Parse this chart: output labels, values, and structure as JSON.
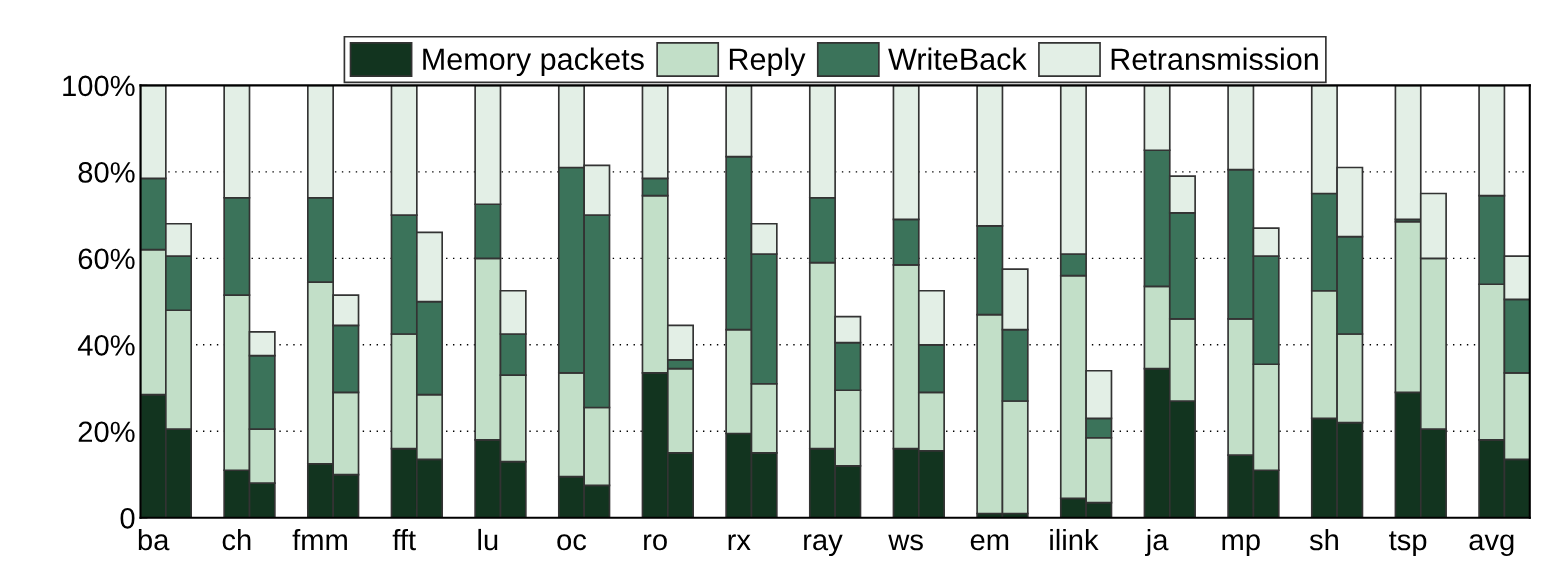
{
  "chart_data": {
    "type": "bar",
    "stacked": true,
    "categories": [
      "ba",
      null,
      "ch",
      null,
      "fmm",
      null,
      "fft",
      null,
      "lu",
      null,
      "oc",
      null,
      "ro",
      null,
      "rx",
      null,
      "ray",
      null,
      "ws",
      null,
      "em",
      null,
      "ilink",
      null,
      "ja",
      null,
      "mp",
      null,
      "sh",
      null,
      "tsp",
      null,
      "avg",
      null
    ],
    "series": [
      {
        "name": "Memory packets",
        "color": "#12341f",
        "values": [
          28.5,
          20.5,
          11,
          8,
          12.5,
          10,
          16,
          13.5,
          18,
          13,
          9.5,
          7.5,
          33.5,
          15,
          19.5,
          15,
          16,
          12,
          16,
          15.5,
          1,
          1,
          4.5,
          3.5,
          34.5,
          27,
          14.5,
          11,
          23,
          22,
          29,
          20.5,
          18,
          13.5
        ]
      },
      {
        "name": "Reply",
        "color": "#c2dfc8",
        "values": [
          33.5,
          27.5,
          40.5,
          12.5,
          42,
          19,
          26.5,
          15,
          42,
          20,
          24,
          18,
          41,
          19.5,
          24,
          16,
          43,
          17.5,
          42.5,
          13.5,
          46,
          26,
          51.5,
          15,
          19,
          19,
          31.5,
          24.5,
          29.5,
          20.5,
          39.5,
          39.5,
          36,
          20
        ]
      },
      {
        "name": "WriteBack",
        "color": "#3b735a",
        "values": [
          16.5,
          12.5,
          22.5,
          17,
          19.5,
          15.5,
          27.5,
          21.5,
          12.5,
          9.5,
          47.5,
          44.5,
          4,
          2,
          40,
          30,
          15,
          11,
          10.5,
          11,
          20.5,
          16.5,
          5,
          4.5,
          31.5,
          24.5,
          34.5,
          25,
          22.5,
          22.5,
          0.5,
          null,
          20.5,
          17
        ]
      },
      {
        "name": "Retransmission",
        "color": "#e3efe6",
        "values": [
          21.5,
          7.5,
          26,
          5.5,
          26,
          7,
          30,
          16,
          27.5,
          10,
          19,
          11.5,
          21.5,
          8,
          16.5,
          7,
          26,
          6,
          31,
          12.5,
          32.5,
          14,
          39,
          11,
          15,
          8.5,
          19.5,
          6.5,
          25,
          16,
          31,
          15,
          25.5,
          10
        ]
      }
    ],
    "ylim": [
      0,
      100
    ],
    "yticks": [
      0,
      {
        "value": 20,
        "label": "20%"
      },
      {
        "value": 40,
        "label": "40%"
      },
      {
        "value": 60,
        "label": "60%"
      },
      {
        "value": 80,
        "label": "80%"
      },
      {
        "value": 100,
        "label": "100%"
      }
    ],
    "grid": "y",
    "legend": "top"
  }
}
